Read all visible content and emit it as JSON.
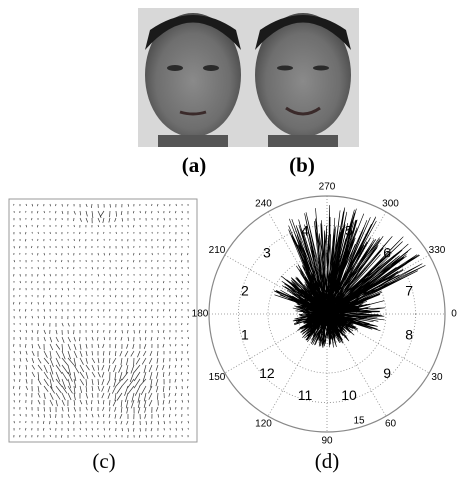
{
  "panels": {
    "a": "(a)",
    "b": "(b)",
    "c": "(c)",
    "d": "(d)"
  },
  "polar": {
    "angle_labels": [
      "0",
      "30",
      "60",
      "90",
      "120",
      "150",
      "180",
      "210",
      "240",
      "270",
      "300",
      "330"
    ],
    "sector_labels": [
      "1",
      "2",
      "3",
      "4",
      "5",
      "6",
      "7",
      "8",
      "9",
      "10",
      "11",
      "12"
    ],
    "radial_label": "15"
  }
}
